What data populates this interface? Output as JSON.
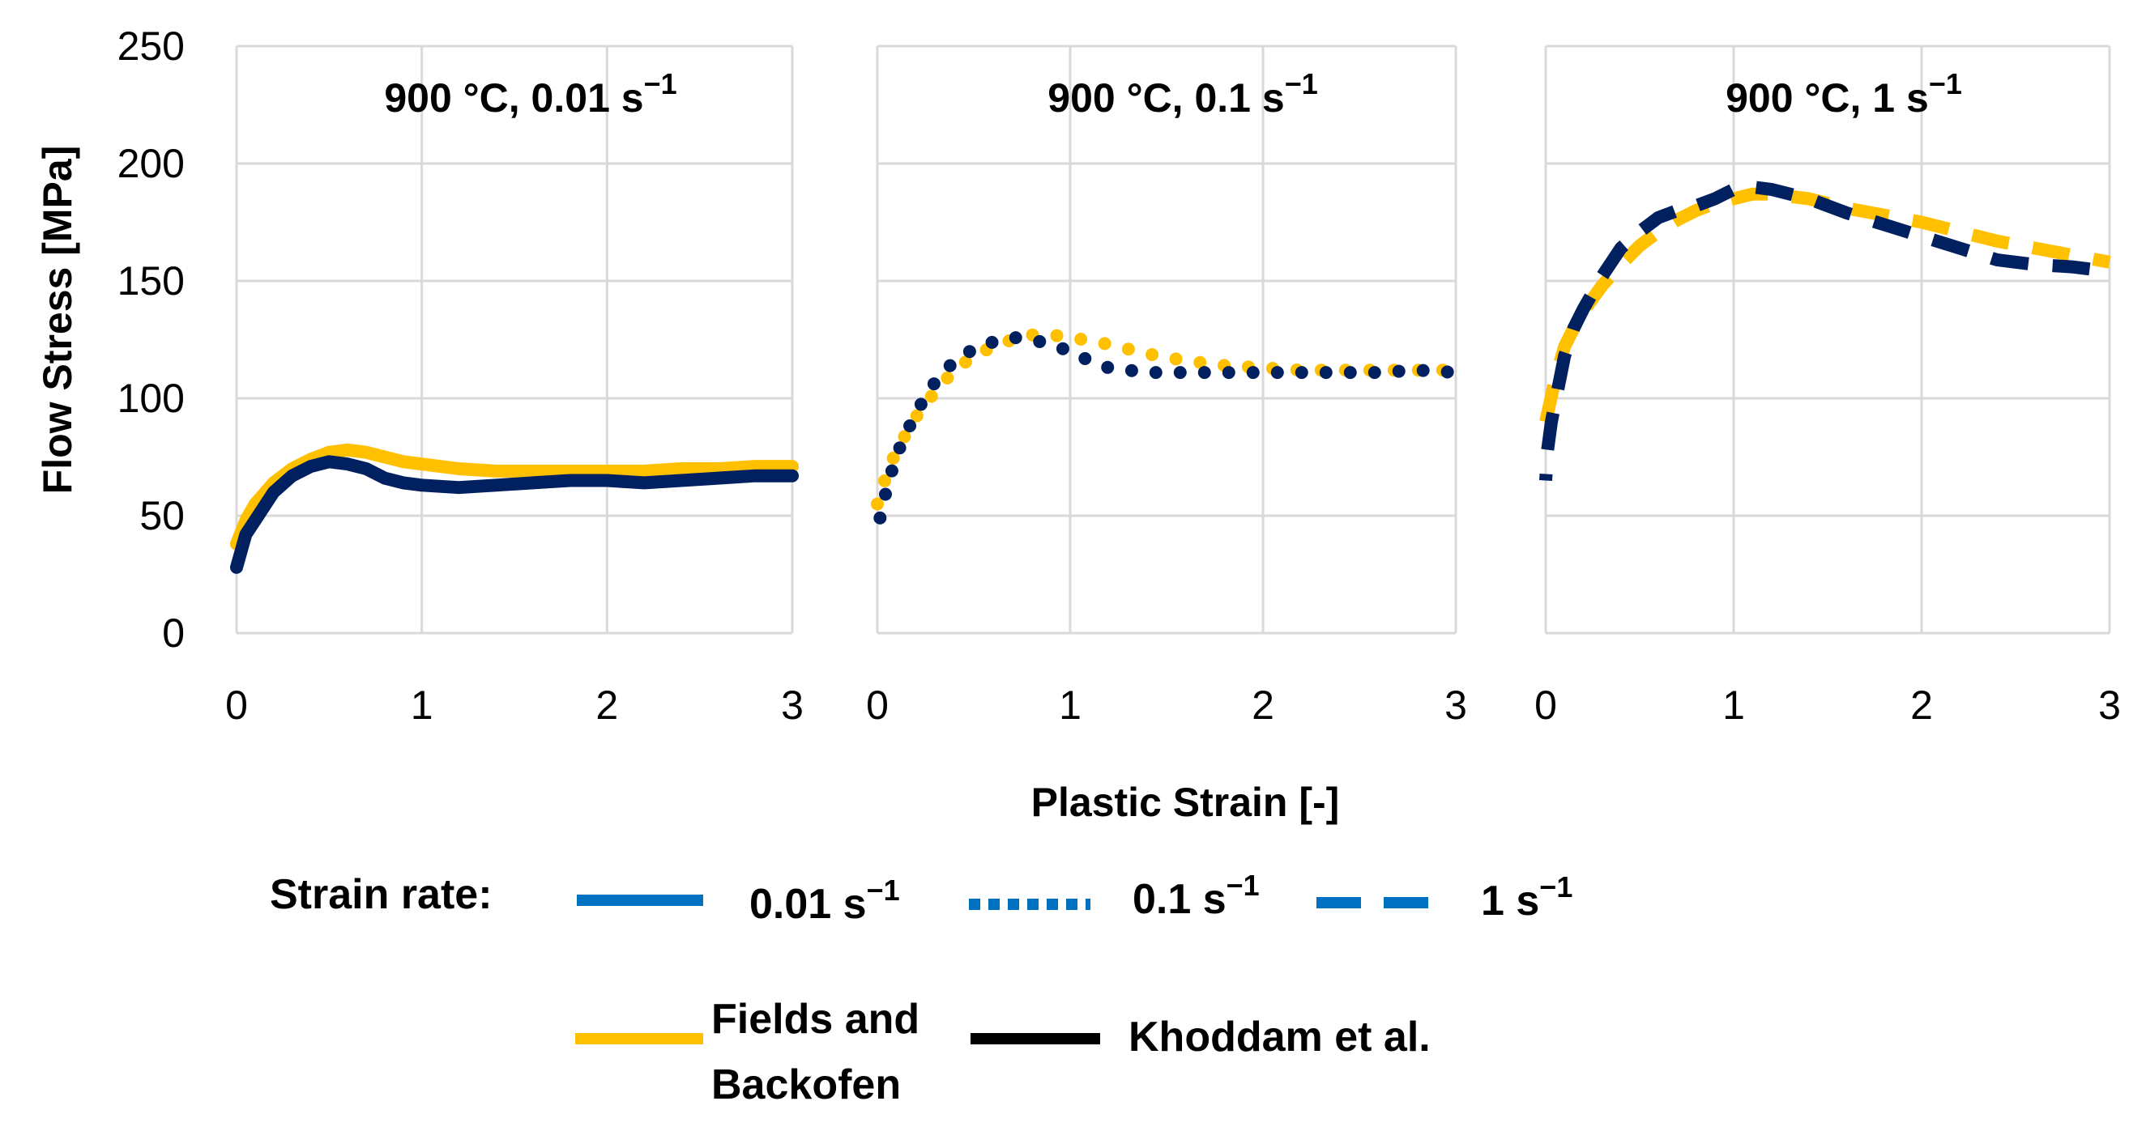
{
  "chart_data": {
    "type": "line",
    "ylabel": "Flow Stress [MPa]",
    "xlabel": "Plastic Strain [-]",
    "ylim": [
      0,
      250
    ],
    "yticks": [
      "0",
      "50",
      "100",
      "150",
      "200",
      "250"
    ],
    "xlim": [
      0,
      3
    ],
    "xticks": [
      "0",
      "1",
      "2",
      "3"
    ],
    "grid": true,
    "colors": {
      "fields": "#FFC000",
      "khoddam": "#002060",
      "legend_rate": "#0070C0",
      "legend_model": "#000000",
      "grid": "#D9D9D9"
    },
    "panels": [
      {
        "title": {
          "main": "900 °C, 0.01 s",
          "sup": "−1"
        },
        "line_style": "solid",
        "series": [
          {
            "name": "Fields and Backofen",
            "x": [
              0,
              0.05,
              0.1,
              0.2,
              0.3,
              0.4,
              0.5,
              0.6,
              0.7,
              0.8,
              0.9,
              1.0,
              1.2,
              1.4,
              1.6,
              1.8,
              2.0,
              2.2,
              2.4,
              2.6,
              2.8,
              3.0
            ],
            "y": [
              38,
              48,
              55,
              64,
              70,
              74,
              77,
              78,
              77,
              75,
              73,
              72,
              70,
              69,
              69,
              69,
              69,
              69,
              70,
              70,
              71,
              71
            ]
          },
          {
            "name": "Khoddam et al.",
            "x": [
              0,
              0.05,
              0.1,
              0.2,
              0.3,
              0.4,
              0.5,
              0.6,
              0.7,
              0.8,
              0.9,
              1.0,
              1.2,
              1.4,
              1.6,
              1.8,
              2.0,
              2.2,
              2.4,
              2.6,
              2.8,
              3.0
            ],
            "y": [
              28,
              42,
              48,
              60,
              67,
              71,
              73,
              72,
              70,
              66,
              64,
              63,
              62,
              63,
              64,
              65,
              65,
              64,
              65,
              66,
              67,
              67
            ]
          }
        ]
      },
      {
        "title": {
          "main": "900 °C, 0.1 s",
          "sup": "−1"
        },
        "line_style": "dotted",
        "series": [
          {
            "name": "Fields and Backofen",
            "x": [
              0,
              0.05,
              0.1,
              0.2,
              0.3,
              0.4,
              0.5,
              0.6,
              0.7,
              0.8,
              0.9,
              1.0,
              1.2,
              1.4,
              1.6,
              1.8,
              2.0,
              2.2,
              2.4,
              2.6,
              2.8,
              3.0
            ],
            "y": [
              55,
              68,
              78,
              92,
              103,
              112,
              118,
              122,
              125,
              127,
              127,
              126,
              123,
              119,
              116,
              114,
              113,
              112,
              112,
              112,
              112,
              112
            ]
          },
          {
            "name": "Khoddam et al.",
            "x": [
              0,
              0.05,
              0.1,
              0.2,
              0.3,
              0.4,
              0.5,
              0.6,
              0.7,
              0.8,
              0.9,
              1.0,
              1.1,
              1.2,
              1.4,
              1.6,
              1.8,
              2.0,
              2.2,
              2.4,
              2.6,
              2.8,
              3.0
            ],
            "y": [
              44,
              62,
              76,
              94,
              107,
              116,
              121,
              124,
              126,
              125,
              123,
              120,
              116,
              113,
              111,
              111,
              111,
              111,
              111,
              111,
              111,
              112,
              111
            ]
          }
        ]
      },
      {
        "title": {
          "main": "900 °C, 1 s",
          "sup": "−1"
        },
        "line_style": "dashed",
        "series": [
          {
            "name": "Fields and Backofen",
            "x": [
              0,
              0.05,
              0.1,
              0.15,
              0.2,
              0.3,
              0.4,
              0.5,
              0.6,
              0.7,
              0.8,
              0.9,
              1.0,
              1.1,
              1.2,
              1.4,
              1.6,
              1.8,
              2.0,
              2.2,
              2.4,
              2.6,
              2.8,
              3.0
            ],
            "y": [
              90,
              108,
              122,
              130,
              137,
              148,
              157,
              165,
              171,
              176,
              180,
              183,
              185,
              187,
              187,
              185,
              181,
              178,
              175,
              171,
              167,
              164,
              161,
              158
            ]
          },
          {
            "name": "Khoddam et al.",
            "x": [
              0,
              0.01,
              0.03,
              0.05,
              0.08,
              0.1,
              0.15,
              0.2,
              0.3,
              0.4,
              0.5,
              0.6,
              0.7,
              0.8,
              0.9,
              1.0,
              1.1,
              1.2,
              1.4,
              1.6,
              1.8,
              2.0,
              2.2,
              2.4,
              2.6,
              2.8,
              3.0
            ],
            "y": [
              65,
              78,
              90,
              98,
              110,
              118,
              130,
              138,
              152,
              164,
              171,
              177,
              180,
              182,
              185,
              189,
              190,
              189,
              185,
              179,
              174,
              169,
              164,
              159,
              157,
              156,
              154
            ]
          }
        ]
      }
    ],
    "legend": {
      "strain_rate_label": "Strain rate:",
      "rates": [
        {
          "label": "0.01 s",
          "sup": "−1",
          "style": "solid"
        },
        {
          "label": "0.1 s",
          "sup": "−1",
          "style": "dotted"
        },
        {
          "label": "1 s",
          "sup": "−1",
          "style": "dashed"
        }
      ],
      "models": [
        {
          "label_line1": "Fields and",
          "label_line2": "Backofen",
          "color_key": "fields"
        },
        {
          "label": "Khoddam et al.",
          "color_key": "khoddam"
        }
      ]
    }
  }
}
